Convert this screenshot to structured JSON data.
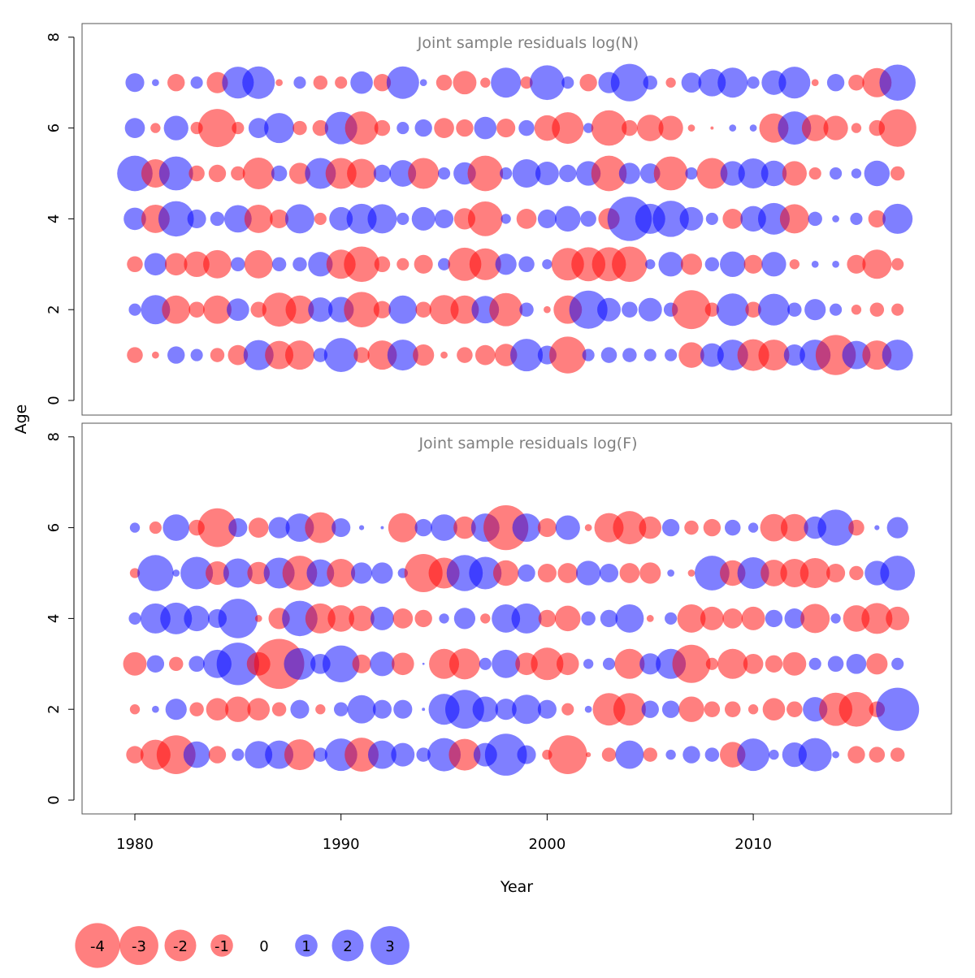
{
  "chart_data": {
    "type": "bubble",
    "xlabel": "Year",
    "ylabel": "Age",
    "xlim": [
      1977.5,
      2019.5
    ],
    "ylim": [
      0,
      8
    ],
    "x_ticks": [
      1980,
      1990,
      2000,
      2010
    ],
    "y_ticks": [
      0,
      2,
      4,
      6,
      8
    ],
    "colors": {
      "positive": "#0000ff",
      "negative": "#ff0000",
      "opacity": 0.5,
      "size_scale": "sqrt(|residual|)"
    },
    "legend": {
      "placement": "bottom-left",
      "items": [
        {
          "label": "-4",
          "value": -4
        },
        {
          "label": "-3",
          "value": -3
        },
        {
          "label": "-2",
          "value": -2
        },
        {
          "label": "-1",
          "value": -1
        },
        {
          "label": "0",
          "value": 0
        },
        {
          "label": "1",
          "value": 1
        },
        {
          "label": "2",
          "value": 2
        },
        {
          "label": "3",
          "value": 3
        }
      ]
    },
    "years": [
      1980,
      1981,
      1982,
      1983,
      1984,
      1985,
      1986,
      1987,
      1988,
      1989,
      1990,
      1991,
      1992,
      1993,
      1994,
      1995,
      1996,
      1997,
      1998,
      1999,
      2000,
      2001,
      2002,
      2003,
      2004,
      2005,
      2006,
      2007,
      2008,
      2009,
      2010,
      2011,
      2012,
      2013,
      2014,
      2015,
      2016,
      2017
    ],
    "panels": [
      {
        "title": "Joint sample residuals log(N)",
        "ages": [
          1,
          2,
          3,
          4,
          5,
          6,
          7
        ],
        "residuals": [
          [
            -0.5,
            -0.1,
            0.6,
            0.3,
            -0.4,
            -0.8,
            1.8,
            -1.6,
            -1.7,
            0.4,
            2.3,
            -0.5,
            -1.7,
            1.9,
            -0.9,
            -0.1,
            -0.5,
            -0.8,
            -1.0,
            2.1,
            0.7,
            -2.7,
            0.3,
            0.5,
            0.4,
            0.3,
            0.3,
            -1.3,
            1.1,
            1.9,
            -2.0,
            -1.9,
            0.9,
            1.9,
            -3.2,
            1.6,
            -1.7,
            1.9
          ],
          [
            0.3,
            1.7,
            -1.6,
            -0.5,
            -1.6,
            1.0,
            -0.5,
            -2.3,
            -1.6,
            1.2,
            1.3,
            -2.5,
            -0.6,
            1.6,
            -0.5,
            -1.7,
            -1.6,
            1.5,
            -2.2,
            0.4,
            -0.1,
            -1.6,
            2.9,
            1.1,
            0.5,
            1.1,
            0.4,
            -3.0,
            -0.4,
            2.1,
            -0.5,
            2.0,
            0.4,
            0.9,
            0.3,
            -0.2,
            -0.4,
            -0.3
          ],
          [
            -0.5,
            1.0,
            -1.0,
            -1.3,
            -1.6,
            0.4,
            -1.6,
            0.4,
            0.4,
            1.2,
            -1.7,
            -2.5,
            -0.5,
            -0.3,
            -0.7,
            0.3,
            -2.2,
            -2.0,
            0.9,
            0.5,
            0.2,
            -2.1,
            -2.3,
            -2.3,
            -2.5,
            0.2,
            1.2,
            -0.9,
            0.4,
            1.3,
            -0.7,
            1.2,
            -0.2,
            0.1,
            0.1,
            -0.7,
            -1.7,
            -0.3
          ],
          [
            1.0,
            -1.6,
            2.5,
            0.7,
            0.4,
            1.5,
            -1.6,
            -0.7,
            1.7,
            -0.3,
            1.1,
            1.8,
            1.7,
            0.3,
            1.1,
            0.7,
            -0.9,
            -2.4,
            0.2,
            -0.8,
            0.7,
            1.3,
            0.5,
            -0.9,
            3.9,
            1.8,
            2.6,
            1.1,
            0.3,
            -0.8,
            1.3,
            2.0,
            -1.7,
            0.4,
            0.1,
            0.3,
            -0.6,
            1.8
          ],
          [
            2.5,
            -1.6,
            2.3,
            -0.5,
            -0.6,
            -0.4,
            -2.0,
            0.5,
            -0.9,
            1.9,
            -1.9,
            -1.7,
            0.6,
            1.4,
            -1.9,
            0.3,
            1.0,
            -2.5,
            0.3,
            1.6,
            1.1,
            0.6,
            1.2,
            -2.5,
            0.9,
            0.8,
            -2.3,
            0.3,
            -1.9,
            1.2,
            1.8,
            1.3,
            -1.2,
            -0.3,
            0.3,
            0.2,
            1.3,
            -0.4
          ],
          [
            0.8,
            -0.2,
            1.2,
            -0.3,
            -2.9,
            -0.3,
            0.8,
            1.8,
            -0.4,
            -0.5,
            2.1,
            -2.2,
            -0.5,
            0.3,
            0.6,
            -0.8,
            -0.6,
            1.0,
            -0.7,
            0.5,
            -1.3,
            -2.0,
            0.2,
            -2.5,
            -0.5,
            -1.4,
            -1.2,
            -0.1,
            -0.02,
            0.1,
            0.1,
            -1.7,
            2.2,
            -1.4,
            -1.2,
            -0.2,
            -0.5,
            -2.8
          ],
          [
            0.7,
            0.1,
            -0.6,
            0.3,
            -0.9,
            2.0,
            2.1,
            -0.1,
            0.3,
            -0.4,
            -0.3,
            1.0,
            -0.6,
            2.1,
            0.1,
            -0.5,
            -1.1,
            -0.2,
            1.8,
            -0.3,
            2.4,
            0.3,
            -0.6,
            0.9,
            2.8,
            0.4,
            -0.2,
            0.8,
            1.5,
            1.8,
            0.3,
            1.2,
            2.0,
            -0.1,
            0.6,
            -0.5,
            -1.7,
            2.6
          ]
        ]
      },
      {
        "title": "Joint sample residuals log(F)",
        "ages": [
          1,
          2,
          3,
          4,
          5,
          6
        ],
        "residuals": [
          [
            -0.6,
            -1.8,
            -3.0,
            1.4,
            -0.6,
            0.3,
            1.5,
            1.6,
            -1.9,
            0.4,
            2.1,
            -2.3,
            1.6,
            1.1,
            0.4,
            2.2,
            -2.0,
            1.1,
            3.5,
            0.7,
            -0.2,
            -3.0,
            -0.05,
            -0.4,
            1.6,
            -0.4,
            0.2,
            0.6,
            0.4,
            -1.3,
            2.1,
            0.2,
            1.2,
            2.2,
            0.1,
            -0.6,
            -0.5,
            -0.4
          ],
          [
            -0.2,
            0.1,
            0.9,
            -0.4,
            -1.0,
            -1.3,
            -1.0,
            -0.4,
            0.7,
            -0.2,
            0.4,
            1.6,
            0.7,
            0.7,
            0.02,
            1.9,
            3.0,
            1.3,
            0.9,
            1.7,
            0.7,
            -0.3,
            0.1,
            -2.1,
            -2.1,
            0.6,
            0.6,
            -1.3,
            -0.5,
            -0.5,
            -0.2,
            -1.0,
            -0.5,
            1.2,
            -2.2,
            -2.4,
            -0.5,
            3.7
          ],
          [
            -1.1,
            0.6,
            -0.4,
            0.5,
            1.6,
            3.6,
            -1.1,
            -5.0,
            2.0,
            0.8,
            2.7,
            -0.7,
            1.2,
            -1.0,
            0.01,
            -1.8,
            -1.9,
            0.3,
            1.6,
            -1.0,
            -2.1,
            -1.0,
            0.2,
            0.3,
            -1.8,
            0.9,
            1.8,
            -2.9,
            -0.3,
            -1.8,
            -0.8,
            -0.6,
            -1.1,
            0.3,
            0.5,
            0.8,
            -0.9,
            0.3
          ],
          [
            0.3,
            1.8,
            2.0,
            1.3,
            0.7,
            3.1,
            -0.1,
            -0.9,
            2.5,
            -1.8,
            -1.4,
            -1.3,
            1.1,
            -0.8,
            -0.6,
            0.2,
            0.9,
            -0.2,
            1.6,
            1.8,
            -0.6,
            -1.3,
            0.4,
            0.6,
            1.6,
            -0.1,
            0.3,
            -1.6,
            -1.1,
            -0.8,
            -1.1,
            0.6,
            0.8,
            -1.7,
            0.2,
            -1.4,
            -1.9,
            -1.1
          ],
          [
            -0.2,
            2.6,
            0.1,
            2.1,
            -1.1,
            1.7,
            -1.0,
            1.9,
            -2.4,
            1.5,
            -1.6,
            0.9,
            0.9,
            0.2,
            -2.9,
            -1.9,
            2.6,
            2.1,
            -1.3,
            0.6,
            -0.7,
            -0.8,
            1.2,
            0.7,
            -0.8,
            -0.9,
            0.1,
            -0.1,
            2.4,
            -1.3,
            2.0,
            -1.4,
            -1.6,
            -1.8,
            -0.7,
            -0.4,
            1.2,
            2.4
          ],
          [
            0.2,
            -0.3,
            1.4,
            -0.5,
            -3.0,
            0.7,
            -0.8,
            0.9,
            1.6,
            -1.9,
            0.7,
            0.05,
            0.02,
            -1.7,
            0.6,
            1.4,
            -1.0,
            1.6,
            -4.0,
            1.6,
            -0.7,
            1.2,
            -0.1,
            -1.7,
            -2.2,
            -1.0,
            0.6,
            -0.4,
            -0.6,
            0.5,
            0.2,
            -1.5,
            -1.5,
            1.0,
            2.6,
            -0.5,
            0.05,
            0.9
          ]
        ]
      }
    ]
  }
}
